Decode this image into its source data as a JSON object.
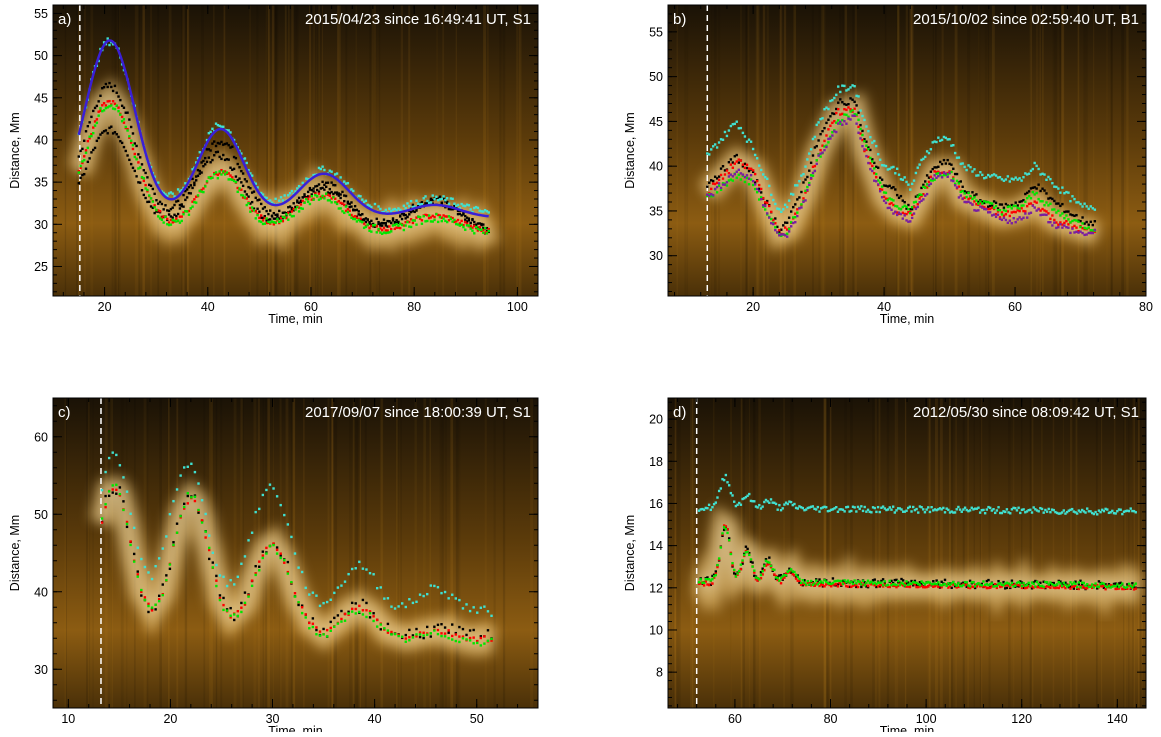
{
  "chart_data": [
    {
      "panel_label": "a)",
      "title": "2015/04/23 since 16:49:41 UT, S1",
      "type": "scatter",
      "xlabel": "Time, min",
      "ylabel": "Distance, Mm",
      "xlim": [
        10,
        104
      ],
      "ylim": [
        21.5,
        56
      ],
      "xticks": [
        20,
        40,
        60,
        80,
        100
      ],
      "yticks": [
        25,
        30,
        35,
        40,
        45,
        50,
        55
      ],
      "marker_time": 15.2,
      "t_range": [
        15,
        94.5
      ],
      "colormap": "solar-orange",
      "series": [
        {
          "color": "#000000",
          "kind": "dots",
          "values": [
            {
              "t0": 15,
              "base": 30.5,
              "decay": 0.2,
              "amp": [
                16,
                10,
                5.2,
                3.8,
                2.4
              ],
              "t_peak": [
                21,
                42.5,
                62.5,
                84
              ],
              "noise": 0.5
            }
          ]
        },
        {
          "color": "#000000",
          "kind": "dots",
          "values": [
            {
              "t0": 15,
              "base": 29.2,
              "decay": 0.0,
              "amp": [
                12,
                9,
                5,
                3.5,
                1.5
              ],
              "t_peak": [
                21,
                42,
                62,
                84
              ],
              "noise": 0.4
            }
          ]
        },
        {
          "color": "#ff0000",
          "kind": "dots",
          "values": [
            {
              "t0": 15,
              "base": 29.0,
              "decay": 0.0,
              "amp": [
                15.5,
                7.2,
                4.5,
                2,
                1
              ],
              "t_peak": [
                21,
                42.5,
                62,
                84
              ],
              "noise": 0.3
            }
          ]
        },
        {
          "color": "#00e600",
          "kind": "dots",
          "values": [
            {
              "t0": 15,
              "base": 28.8,
              "decay": 0.0,
              "amp": [
                15.5,
                7.2,
                4.5,
                2,
                1
              ],
              "t_peak": [
                21,
                42.5,
                62,
                84
              ],
              "noise": 0.5
            }
          ]
        },
        {
          "color": "#40e0d0",
          "kind": "dots",
          "values": [
            {
              "t0": 15,
              "base": 31.2,
              "decay": 0.0,
              "amp": [
                20.5,
                10.5,
                5.2,
                1.8,
                0.5
              ],
              "t_peak": [
                21,
                42.5,
                62.5,
                84
              ],
              "noise": 0.45
            }
          ]
        },
        {
          "color": "#3a1fd6",
          "kind": "line",
          "values": [
            {
              "t0": 15,
              "base": 30.8,
              "decay": 0.0,
              "amp": [
                21,
                10.5,
                5.2,
                1.5,
                0.3
              ],
              "t_peak": [
                21,
                42.5,
                62.5,
                84
              ],
              "noise": 0
            }
          ]
        }
      ]
    },
    {
      "panel_label": "b)",
      "title": "2015/10/02 since 02:59:40 UT, B1",
      "type": "scatter",
      "xlabel": "Time, min",
      "ylabel": "Distance, Mm",
      "xlim": [
        7,
        80
      ],
      "ylim": [
        25.5,
        58
      ],
      "xticks": [
        20,
        40,
        60,
        80
      ],
      "yticks": [
        30,
        35,
        40,
        45,
        50,
        55
      ],
      "marker_time": 13,
      "t_range": [
        13,
        72.5
      ],
      "colormap": "solar-orange",
      "series": [
        {
          "color": "#40e0d0",
          "kind": "dots",
          "values": [
            [
              13,
              41.2
            ],
            [
              17.5,
              45
            ],
            [
              20,
              42
            ],
            [
              24,
              35
            ],
            [
              25.5,
              36
            ],
            [
              28,
              40
            ],
            [
              30,
              45
            ],
            [
              33,
              48.5
            ],
            [
              35.5,
              49
            ],
            [
              37,
              45
            ],
            [
              40,
              40
            ],
            [
              42,
              39.5
            ],
            [
              44,
              37.5
            ],
            [
              46,
              41
            ],
            [
              48,
              43
            ],
            [
              50,
              43
            ],
            [
              52,
              40
            ],
            [
              55,
              39
            ],
            [
              58,
              38.5
            ],
            [
              61,
              38.5
            ],
            [
              63,
              40
            ],
            [
              66,
              38
            ],
            [
              70,
              35.5
            ],
            [
              72.5,
              35.5
            ]
          ]
        },
        {
          "color": "#000000",
          "kind": "dots",
          "values": [
            [
              13,
              38
            ],
            [
              17.5,
              41
            ],
            [
              20,
              39
            ],
            [
              24,
              33
            ],
            [
              25.5,
              34
            ],
            [
              28,
              38.5
            ],
            [
              30,
              43
            ],
            [
              33,
              47
            ],
            [
              35.5,
              47.5
            ],
            [
              37,
              43
            ],
            [
              40,
              38
            ],
            [
              42,
              37
            ],
            [
              44,
              35
            ],
            [
              46,
              38
            ],
            [
              48,
              40
            ],
            [
              50,
              40.5
            ],
            [
              52,
              37.5
            ],
            [
              55,
              36
            ],
            [
              58,
              35.5
            ],
            [
              61,
              36
            ],
            [
              63,
              38
            ],
            [
              66,
              36
            ],
            [
              70,
              34
            ],
            [
              72.5,
              33.5
            ]
          ]
        },
        {
          "color": "#ff0000",
          "kind": "dots",
          "values": [
            [
              13,
              37
            ],
            [
              17.5,
              40.5
            ],
            [
              20,
              39.5
            ],
            [
              24,
              32.5
            ],
            [
              25.5,
              33
            ],
            [
              28,
              37
            ],
            [
              30,
              41.5
            ],
            [
              33,
              46
            ],
            [
              35.5,
              46.5
            ],
            [
              37,
              42
            ],
            [
              40,
              36.5
            ],
            [
              42,
              35
            ],
            [
              44,
              34.5
            ],
            [
              46,
              37
            ],
            [
              48,
              39.5
            ],
            [
              50,
              39.5
            ],
            [
              52,
              36.5
            ],
            [
              55,
              35.5
            ],
            [
              58,
              34.5
            ],
            [
              61,
              35
            ],
            [
              63,
              36
            ],
            [
              66,
              34
            ],
            [
              70,
              33
            ],
            [
              72.5,
              32.5
            ]
          ]
        },
        {
          "color": "#00e600",
          "kind": "dots",
          "values": [
            [
              13,
              36.5
            ],
            [
              17.5,
              39
            ],
            [
              20,
              38
            ],
            [
              24,
              32
            ],
            [
              25.5,
              33
            ],
            [
              28,
              37
            ],
            [
              30,
              41
            ],
            [
              33,
              45
            ],
            [
              35.5,
              46
            ],
            [
              37,
              43
            ],
            [
              40,
              37
            ],
            [
              42,
              35.5
            ],
            [
              44,
              35
            ],
            [
              46,
              37.5
            ],
            [
              48,
              39
            ],
            [
              50,
              39.5
            ],
            [
              52,
              37
            ],
            [
              55,
              36
            ],
            [
              58,
              35
            ],
            [
              61,
              35.5
            ],
            [
              63,
              37
            ],
            [
              66,
              35
            ],
            [
              70,
              33.5
            ],
            [
              72.5,
              33
            ]
          ]
        },
        {
          "color": "#7a1fa0",
          "kind": "dots",
          "values": [
            [
              13,
              36.5
            ],
            [
              17.5,
              39.5
            ],
            [
              20,
              38.5
            ],
            [
              24,
              32
            ],
            [
              25.5,
              32.5
            ],
            [
              28,
              36.5
            ],
            [
              30,
              41
            ],
            [
              33,
              44.5
            ],
            [
              35.5,
              45.5
            ],
            [
              37,
              41.5
            ],
            [
              40,
              36
            ],
            [
              42,
              34.5
            ],
            [
              44,
              34
            ],
            [
              46,
              36.5
            ],
            [
              48,
              39
            ],
            [
              50,
              39
            ],
            [
              52,
              36
            ],
            [
              55,
              35
            ],
            [
              58,
              34
            ],
            [
              61,
              34
            ],
            [
              63,
              35.5
            ],
            [
              66,
              33.5
            ],
            [
              70,
              32.5
            ],
            [
              72.5,
              32.5
            ]
          ]
        }
      ]
    },
    {
      "panel_label": "c)",
      "title": "2017/09/07 since 18:00:39 UT, S1",
      "type": "scatter",
      "xlabel": "Time, min",
      "ylabel": "Distance, Mm",
      "xlim": [
        8.5,
        56
      ],
      "ylim": [
        25,
        65
      ],
      "xticks": [
        10,
        20,
        30,
        40,
        50
      ],
      "yticks": [
        30,
        40,
        50,
        60
      ],
      "marker_time": 13.2,
      "t_range": [
        13.3,
        51.5
      ],
      "colormap": "solar-orange",
      "series": [
        {
          "color": "#40e0d0",
          "kind": "dots",
          "values": [
            {
              "t0": 13.3,
              "base": 37.5,
              "decay": 0.02,
              "amp": [
                20.5,
                19,
                16,
                6,
                3
              ],
              "t_peak": [
                14.5,
                21.7,
                29.8,
                38.5,
                46
              ],
              "noise": 0.6
            }
          ]
        },
        {
          "color": "#000000",
          "kind": "dots",
          "values": [
            {
              "t0": 13.3,
              "base": 34.2,
              "decay": 0.02,
              "amp": [
                19.5,
                18,
                12,
                4,
                1
              ],
              "t_peak": [
                14.5,
                22,
                30,
                38.5,
                46
              ],
              "noise": 1.0
            }
          ]
        },
        {
          "color": "#ff0000",
          "kind": "dots",
          "values": [
            {
              "t0": 13.3,
              "base": 34,
              "decay": 0.02,
              "amp": [
                19.5,
                18,
                12,
                4,
                1
              ],
              "t_peak": [
                14.5,
                22,
                30,
                38.5,
                46
              ],
              "noise": 0.4
            }
          ]
        },
        {
          "color": "#00e600",
          "kind": "dots",
          "values": [
            {
              "t0": 13.3,
              "base": 33.6,
              "decay": 0.02,
              "amp": [
                20,
                19,
                12,
                4,
                1
              ],
              "t_peak": [
                14.5,
                22,
                30,
                38.5,
                46
              ],
              "noise": 0.5
            }
          ]
        }
      ]
    },
    {
      "panel_label": "d)",
      "title": "2012/05/30 since 08:09:42 UT, S1",
      "type": "scatter",
      "xlabel": "Time, min",
      "ylabel": "Distance, Mm",
      "xlim": [
        46,
        146
      ],
      "ylim": [
        6.3,
        21
      ],
      "xticks": [
        60,
        80,
        100,
        120,
        140
      ],
      "yticks": [
        8,
        10,
        12,
        14,
        16,
        18,
        20
      ],
      "marker_time": 52,
      "t_range": [
        52.5,
        144
      ],
      "colormap": "solar-orange",
      "series": [
        {
          "color": "#40e0d0",
          "kind": "dots",
          "values": [
            {
              "t0": 52.5,
              "base": 15.8,
              "decay": 0.02,
              "amp": [
                1.5,
                0.6,
                0.35,
                0.2
              ],
              "t_peak": [
                58,
                62.5,
                67,
                71.5
              ],
              "noise": 0.15
            }
          ]
        },
        {
          "color": "#000000",
          "kind": "dots",
          "values": [
            {
              "t0": 52.5,
              "base": 12.3,
              "decay": 0.02,
              "amp": [
                2.6,
                1.5,
                1.0,
                0.6
              ],
              "t_peak": [
                58,
                62.5,
                67,
                71.5
              ],
              "noise": 0.2
            }
          ]
        },
        {
          "color": "#ff0000",
          "kind": "dots",
          "values": [
            {
              "t0": 52.5,
              "base": 12.2,
              "decay": 0.02,
              "amp": [
                2.8,
                1.6,
                1.0,
                0.6
              ],
              "t_peak": [
                58,
                62.5,
                67,
                71.5
              ],
              "noise": 0.1
            }
          ]
        },
        {
          "color": "#00e600",
          "kind": "dots",
          "values": [
            {
              "t0": 52.5,
              "base": 12.3,
              "decay": 0.02,
              "amp": [
                2.6,
                1.5,
                1.0,
                0.6
              ],
              "t_peak": [
                58,
                62.5,
                67,
                71.5
              ],
              "noise": 0.12
            }
          ]
        }
      ]
    }
  ]
}
